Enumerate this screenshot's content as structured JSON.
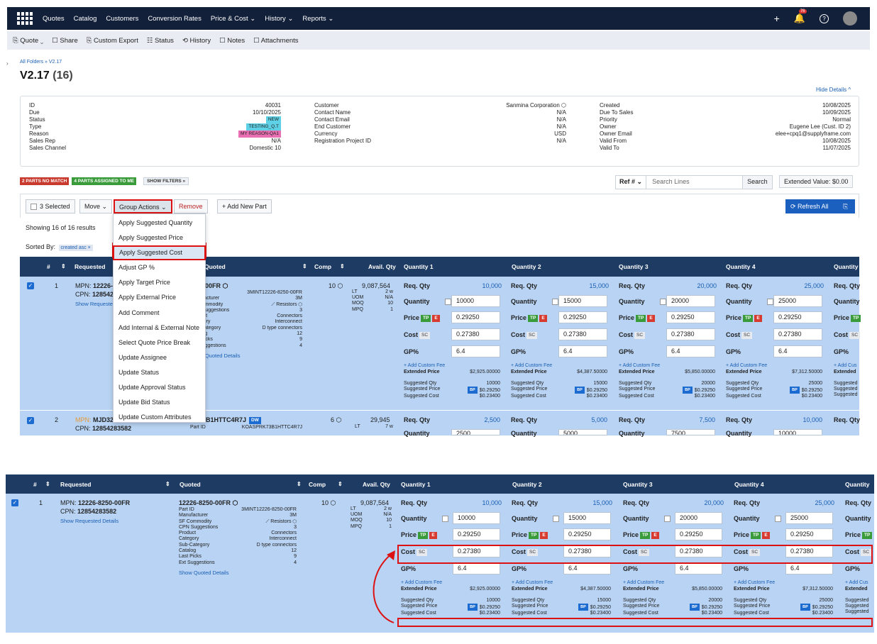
{
  "nav": {
    "items": [
      "Quotes",
      "Catalog",
      "Customers",
      "Conversion Rates",
      "Price & Cost ⌄",
      "History ⌄",
      "Reports ⌄"
    ],
    "plus": "+",
    "notif_count": "76",
    "help": "?"
  },
  "toolbar": {
    "items": [
      "⎘ Quote ⌄",
      "☐ Share",
      "⎘ Custom Export",
      "☷ Status",
      "⟲ History",
      "☐ Notes",
      "☐ Attachments"
    ]
  },
  "breadcrumb": "All Folders » V2.17",
  "title": {
    "name": "V2.17",
    "count": "(16)"
  },
  "hide_details": "Hide Details ^",
  "details": {
    "col1": [
      [
        "ID",
        "40031"
      ],
      [
        "Due",
        "10/10/2025"
      ],
      [
        "Status",
        "NEW"
      ],
      [
        "Type",
        "TESTING_Q.T"
      ],
      [
        "Reason",
        "MY REASON-QA1"
      ],
      [
        "Sales Rep",
        "N/A"
      ],
      [
        "Sales Channel",
        "Domestic 10"
      ]
    ],
    "col2": [
      [
        "Customer",
        "Sanmina Corporation ⬡"
      ],
      [
        "Contact Name",
        "N/A"
      ],
      [
        "Contact Email",
        "N/A"
      ],
      [
        "End Customer",
        "N/A"
      ],
      [
        "Currency",
        "USD"
      ],
      [
        "Registration Project ID",
        "N/A"
      ]
    ],
    "col3": [
      [
        "Created",
        "10/08/2025"
      ],
      [
        "Due To Sales",
        "10/09/2025"
      ],
      [
        "Priority",
        "Normal"
      ],
      [
        "Owner",
        "Eugene Lee (Cust. ID 2)"
      ],
      [
        "Owner Email",
        "elee+cpq1@supplyframe.com"
      ],
      [
        "Valid From",
        "10/08/2025"
      ],
      [
        "Valid To",
        "11/07/2025"
      ]
    ]
  },
  "badges": {
    "no_match": "2 PARTS NO MATCH",
    "assigned": "4 PARTS ASSIGNED TO ME",
    "filters": "SHOW FILTERS »"
  },
  "search": {
    "ref": "Ref # ⌄",
    "placeholder": "Search Lines",
    "button": "Search",
    "extended": "Extended Value: $0.00"
  },
  "actions": {
    "selected": "3 Selected",
    "move": "Move ⌄",
    "group": "Group Actions ⌄",
    "remove": "Remove",
    "add": "+ Add New Part",
    "refresh": "⟳ Refresh All",
    "refresh_icon": "⎘"
  },
  "showing": "Showing 16 of 16 results",
  "sorted": {
    "label": "Sorted By:",
    "chip": "created asc ×"
  },
  "dropdown": [
    "Apply Suggested Quantity",
    "Apply Suggested Price",
    "Apply Suggested Cost",
    "Adjust GP %",
    "Apply Target Price",
    "Apply External Price",
    "Add Comment",
    "Add Internal & External Note",
    "Select Quote Price Break",
    "Update Assignee",
    "Update Status",
    "Update Approval Status",
    "Update Bid Status",
    "Update Custom Attributes"
  ],
  "headers": {
    "hash": "#",
    "requested": "Requested",
    "quoted": "Quoted",
    "comp": "Comp",
    "avail": "Avail. Qty",
    "q1": "Quantity 1",
    "q2": "Quantity 2",
    "q3": "Quantity 3",
    "q4": "Quantity 4",
    "q5": "Quantity"
  },
  "row1": {
    "num": "1",
    "mpn_label": "MPN:",
    "mpn": "12226-8250-00FR",
    "cpn_label": "CPN:",
    "cpn": "12854283582",
    "show_req": "Show Requested Details",
    "quoted_part": "12226-8250-00FR ⬡",
    "props": [
      [
        "Part ID",
        "3MINT12226-8250-00FR"
      ],
      [
        "Manufacturer",
        "3M"
      ],
      [
        "SF Commodity",
        "⟋ Resistors ⬡"
      ],
      [
        "CPN Suggestions",
        "3"
      ],
      [
        "Product",
        "Connectors"
      ],
      [
        "Category",
        "Interconnect"
      ],
      [
        "Sub-Category",
        "D type connectors"
      ],
      [
        "Catalog",
        "12"
      ],
      [
        "Last Picks",
        "9"
      ],
      [
        "Ext Suggestions",
        "4"
      ]
    ],
    "show_quoted": "Show Quoted Details",
    "comp": "10 ⬡",
    "avail": "9,087,564",
    "avail_rows": [
      [
        "LT",
        "2 w"
      ],
      [
        "UOM",
        "N/A"
      ],
      [
        "MOQ",
        "10"
      ],
      [
        "MPQ",
        "1"
      ]
    ]
  },
  "qlabels": {
    "req": "Req. Qty",
    "quantity": "Quantity",
    "price": "Price",
    "cost": "Cost",
    "gp": "GP%",
    "tp": "TP",
    "e": "E",
    "sc": "SC",
    "add_fee": "+ Add Custom Fee",
    "ext_price": "Extended Price",
    "sugg_qty": "Suggested Qty",
    "sugg_price": "Suggested Price",
    "sugg_cost": "Suggested Cost",
    "bp": "BP"
  },
  "qcols": [
    {
      "req": "10,000",
      "qty": "10000",
      "price": "0.29250",
      "cost": "0.27380",
      "gp": "6.4",
      "ext": "$2,925.00000",
      "sqty": "10000",
      "sprice": "$0.29250",
      "scost": "$0.23400"
    },
    {
      "req": "15,000",
      "qty": "15000",
      "price": "0.29250",
      "cost": "0.27380",
      "gp": "6.4",
      "ext": "$4,387.50000",
      "sqty": "15000",
      "sprice": "$0.29250",
      "scost": "$0.23400"
    },
    {
      "req": "20,000",
      "qty": "20000",
      "price": "0.29250",
      "cost": "0.27380",
      "gp": "6.4",
      "ext": "$5,850.00000",
      "sqty": "20000",
      "sprice": "$0.29250",
      "scost": "$0.23400"
    },
    {
      "req": "25,000",
      "qty": "25000",
      "price": "0.29250",
      "cost": "0.27380",
      "gp": "6.4",
      "ext": "$7,312.50000",
      "sqty": "25000",
      "sprice": "$0.29250",
      "scost": "$0.23400"
    }
  ],
  "q5": {
    "req": "Req. Qty",
    "quantity": "Quantity",
    "price": "Price",
    "tp": "TP",
    "cost": "Cost",
    "sc": "SC",
    "gp": "GP%",
    "add": "+ Add Cus",
    "ext": "Extended",
    "sq": "Suggested",
    "sp": "Suggested",
    "sc2": "Suggested"
  },
  "row2": {
    "num": "2",
    "mpn_label": "MPN:",
    "mpn": "MJD32",
    "cpn_label": "CPN:",
    "cpn": "12854283582",
    "quoted_part": "B1HTTC4R7J",
    "dw": "DW",
    "part_id_label": "Part ID",
    "part_id": "KOASPRK73B1HTTC4R7J",
    "comp": "6 ⬡",
    "avail": "29,945",
    "lt": "LT",
    "lt_v": "7 w",
    "qreq": [
      "2,500",
      "5,000",
      "7,500",
      "10,000"
    ],
    "qty": [
      "2500",
      "5000",
      "7500",
      "10000"
    ]
  },
  "row1_hidden_quoted": "5-8250-00FR ⬡"
}
